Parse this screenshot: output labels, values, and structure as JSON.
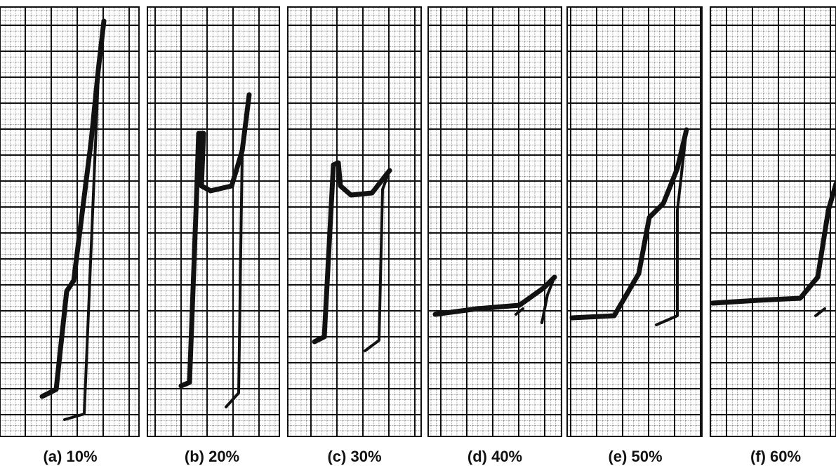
{
  "panels": [
    {
      "label": "(a) 10%"
    },
    {
      "label": "(b) 20%"
    },
    {
      "label": "(c) 30%"
    },
    {
      "label": "(d) 40%"
    },
    {
      "label": "(e) 50%"
    },
    {
      "label": "(f) 60%"
    }
  ]
}
